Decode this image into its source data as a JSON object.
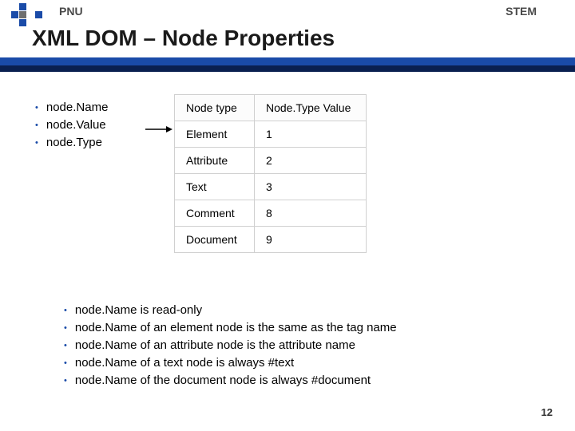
{
  "header": {
    "left_label": "PNU",
    "right_label": "STEM",
    "logo_colors": [
      "#ffffff",
      "#1a4ba8",
      "#ffffff",
      "#ffffff",
      "#ffffff",
      "#1a4ba8",
      "#6e6e6e",
      "#ffffff",
      "#1a4ba8",
      "#ffffff",
      "#ffffff",
      "#1a4ba8",
      "#ffffff",
      "#ffffff",
      "#ffffff"
    ]
  },
  "title": "XML DOM – Node Properties",
  "bar": {
    "top_color": "#1a4ba8",
    "bottom_color": "#0a2050"
  },
  "props": {
    "items": [
      "node.Name",
      "node.Value",
      "node.Type"
    ]
  },
  "arrow": {
    "stroke": "#000000",
    "width": 34,
    "height": 10
  },
  "table": {
    "columns": [
      "Node type",
      "Node.Type Value"
    ],
    "rows": [
      [
        "Element",
        "1"
      ],
      [
        "Attribute",
        "2"
      ],
      [
        "Text",
        "3"
      ],
      [
        "Comment",
        "8"
      ],
      [
        "Document",
        "9"
      ]
    ],
    "border_color": "#d0d0d0",
    "font_size": 14
  },
  "notes": {
    "items": [
      "node.Name is read-only",
      "node.Name of an element node is the same as the tag name",
      "node.Name of an attribute node is the attribute name",
      "node.Name of a text node is always #text",
      "node.Name of the document node is always #document"
    ]
  },
  "page_number": "12",
  "bullet_color": "#1a4ba8"
}
